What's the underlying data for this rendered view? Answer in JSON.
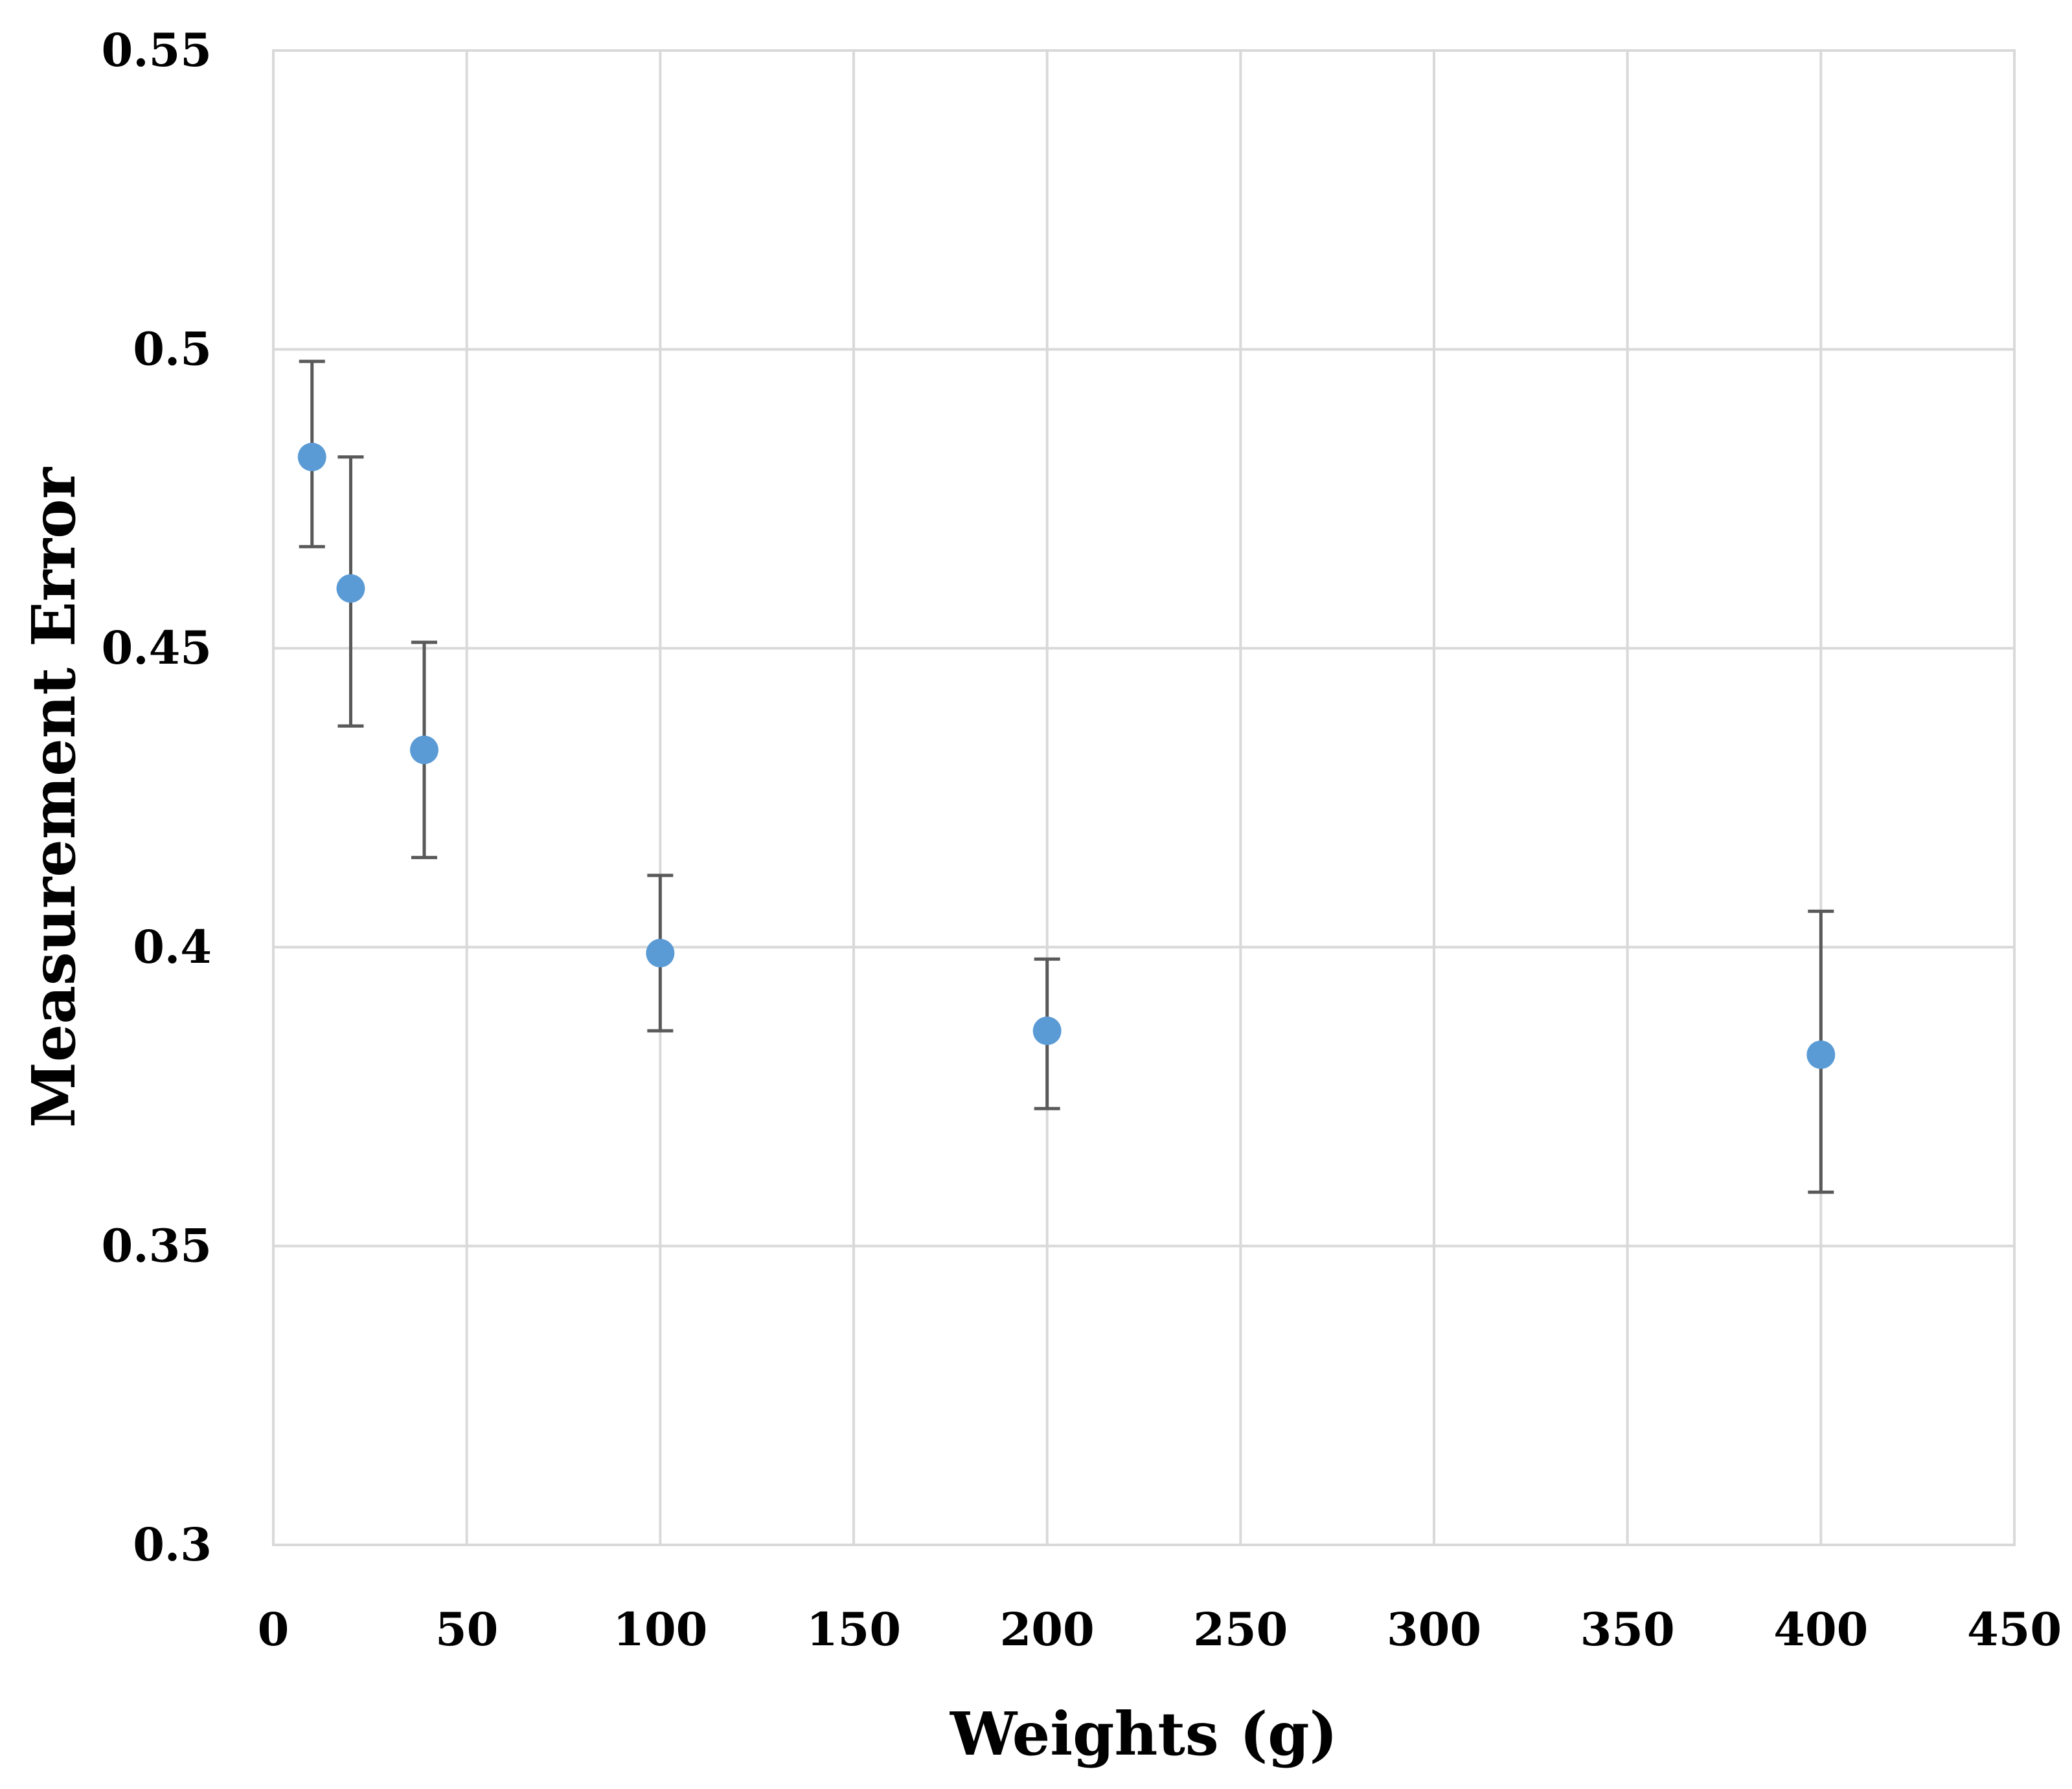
{
  "chart_data": {
    "type": "scatter",
    "title": "",
    "xlabel": "Weights (g)",
    "ylabel": "Measurement Error",
    "xlim": [
      0,
      450
    ],
    "ylim": [
      0.3,
      0.55
    ],
    "x_ticks": [
      "0",
      "50",
      "100",
      "150",
      "200",
      "250",
      "300",
      "350",
      "400",
      "450"
    ],
    "y_ticks": [
      "0.3",
      "0.35",
      "0.4",
      "0.45",
      "0.5",
      "0.55"
    ],
    "grid": true,
    "legend": "none",
    "marker_color": "#5b9bd5",
    "error_bar_color": "#595959",
    "series": [
      {
        "x": [
          10,
          20,
          39,
          100,
          200,
          400
        ],
        "y": [
          0.482,
          0.46,
          0.433,
          0.399,
          0.386,
          0.382
        ],
        "y_err_upper": [
          0.498,
          0.482,
          0.451,
          0.412,
          0.398,
          0.406
        ],
        "y_err_lower": [
          0.467,
          0.437,
          0.415,
          0.386,
          0.373,
          0.359
        ]
      }
    ]
  }
}
